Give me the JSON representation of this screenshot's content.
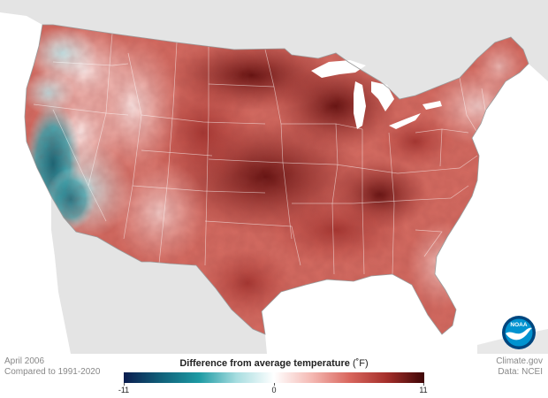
{
  "map": {
    "period_line1": "April 2006",
    "period_line2": "Compared to 1991-2020",
    "legend_title": "Difference from average temperature",
    "legend_unit": "(˚F)",
    "legend_min": "-11",
    "legend_mid": "0",
    "legend_max": "11",
    "legend_range": [
      -11,
      11
    ],
    "legend_colors": [
      "#0b1d4f",
      "#11617a",
      "#1d9aa3",
      "#a7dde0",
      "#ffffff",
      "#f4b9b3",
      "#d9675e",
      "#a52f2b",
      "#3e0606"
    ],
    "source_line1": "Climate.gov",
    "source_line2": "Data: NCEI",
    "logo_text": "NOAA",
    "logo_colors": {
      "outer": "#00467f",
      "inner": "#0093d0",
      "bird": "#ffffff"
    },
    "background_colors": {
      "ocean": "#ffffff",
      "land_outside": "#e4e4e4"
    }
  }
}
